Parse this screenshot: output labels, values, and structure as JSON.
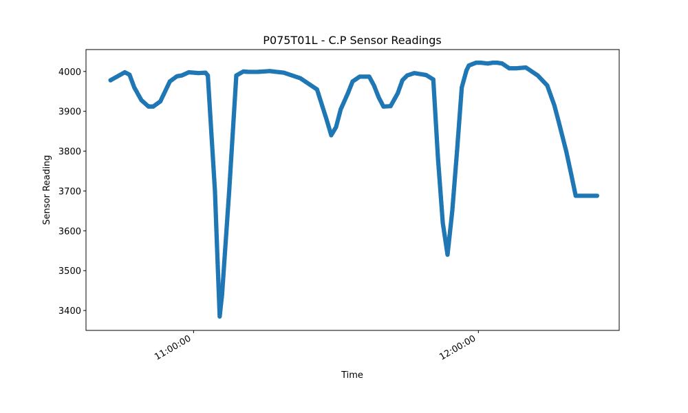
{
  "chart_data": {
    "type": "scatter",
    "title": "P075T01L - C.P Sensor Readings",
    "xlabel": "Time",
    "ylabel": "Sensor Reading",
    "x_ticks": [
      "11:00:00",
      "12:00:00"
    ],
    "x_tick_values": [
      "11:00:00",
      "12:00:00"
    ],
    "xlim": [
      "10:37:20",
      "12:29:40"
    ],
    "ylim": [
      3350,
      4055
    ],
    "y_ticks": [
      3400,
      3500,
      3600,
      3700,
      3800,
      3900,
      4000
    ],
    "grid": false,
    "legend": "none",
    "series_color": "#1f77b4",
    "series": [
      {
        "x": [
          "10:42:30",
          "10:45:30",
          "10:46:30",
          "10:47:30",
          "10:49:00",
          "10:50:30",
          "10:51:30",
          "10:53:00",
          "10:55:00",
          "10:56:30",
          "10:57:30",
          "10:59:00",
          "11:01:00",
          "11:02:30",
          "11:03:00",
          "11:04:30",
          "11:05:00",
          "11:05:30",
          "11:06:00",
          "11:07:30",
          "11:09:00",
          "11:10:30",
          "11:11:30",
          "11:13:30",
          "11:16:00",
          "11:19:00",
          "11:22:30",
          "11:26:00",
          "11:28:00",
          "11:29:00",
          "11:30:00",
          "11:31:00",
          "11:32:30",
          "11:33:30",
          "11:35:00",
          "11:37:00",
          "11:38:00",
          "11:39:00",
          "11:40:00",
          "11:41:30",
          "11:43:00",
          "11:44:00",
          "11:45:00",
          "11:46:30",
          "11:48:00",
          "11:49:00",
          "11:50:30",
          "11:51:30",
          "11:52:30",
          "11:53:30",
          "11:54:30",
          "11:55:30",
          "11:56:30",
          "11:57:30",
          "11:58:00",
          "11:59:30",
          "12:00:30",
          "12:02:00",
          "12:03:00",
          "12:04:00",
          "12:05:00",
          "12:06:30",
          "12:08:00",
          "12:10:00",
          "12:12:30",
          "12:14:30",
          "12:16:00",
          "12:17:00",
          "12:18:30",
          "12:19:30",
          "12:20:30",
          "12:21:30",
          "12:22:30",
          "12:23:30",
          "12:24:30",
          "12:25:00"
        ],
        "y": [
          3978,
          3998,
          3992,
          3960,
          3928,
          3912,
          3912,
          3925,
          3975,
          3988,
          3990,
          3998,
          3996,
          3997,
          3990,
          3700,
          3540,
          3385,
          3440,
          3700,
          3990,
          4000,
          3999,
          3999,
          4001,
          3997,
          3983,
          3955,
          3880,
          3840,
          3860,
          3905,
          3945,
          3975,
          3987,
          3987,
          3965,
          3935,
          3912,
          3913,
          3945,
          3978,
          3990,
          3996,
          3993,
          3991,
          3980,
          3780,
          3620,
          3540,
          3650,
          3800,
          3960,
          4003,
          4015,
          4022,
          4022,
          4020,
          4022,
          4022,
          4020,
          4008,
          4008,
          4010,
          3990,
          3965,
          3915,
          3870,
          3800,
          3745,
          3688,
          3688,
          3688,
          3688,
          3688,
          3688
        ]
      }
    ]
  }
}
